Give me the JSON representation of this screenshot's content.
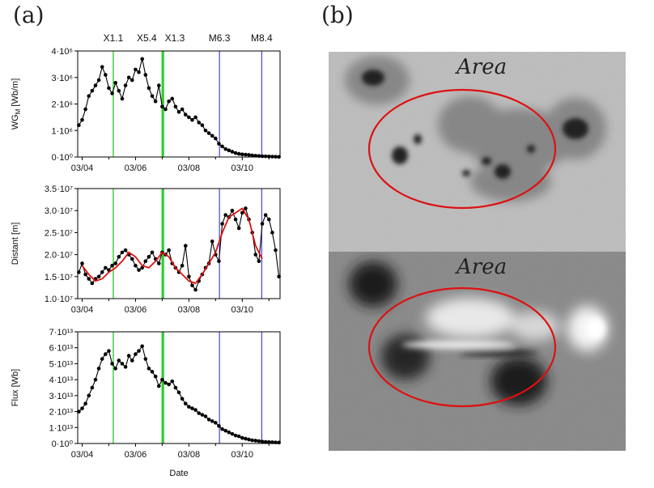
{
  "figure": {
    "panel_a_label": "(a)",
    "panel_b_label": "(b)"
  },
  "flares": [
    {
      "label": "X1.1",
      "date": "2012-03-05T04:00",
      "color": "#22cc22"
    },
    {
      "label": "X5.4",
      "date": "2012-03-07T00:00",
      "color": "#22cc22"
    },
    {
      "label": "X1.3",
      "date": "2012-03-07T01:10",
      "color": "#22cc22"
    },
    {
      "label": "M6.3",
      "date": "2012-03-09T03:30",
      "color": "#2222cc"
    },
    {
      "label": "M8.4",
      "date": "2012-03-10T17:30",
      "color": "#2222cc"
    }
  ],
  "images": {
    "top_label": "Area",
    "bottom_label": "Area",
    "ellipse_color": "#dd1111"
  },
  "chart_data": [
    {
      "type": "line",
      "ylabel": "WG_M [Wb/m]",
      "ylabel_base": "WG",
      "ylabel_sub": "M",
      "ylabel_unit": " [Wb/m]",
      "xlabel": "",
      "ylim": [
        0,
        4000000
      ],
      "yticks": [
        0,
        1000000,
        2000000,
        3000000,
        4000000
      ],
      "ytick_labels": [
        "0·10⁰",
        "1·10⁶",
        "2·10⁶",
        "3·10⁶",
        "4·10⁶"
      ],
      "xticks": [
        "03/04",
        "03/06",
        "03/08",
        "03/10"
      ],
      "xrange": [
        "2012-03-03T20:00",
        "2012-03-11T10:00"
      ],
      "series": [
        {
          "color": "#000000",
          "x": [
            "2012-03-03T21:00",
            "2012-03-04T00:00",
            "2012-03-04T03:00",
            "2012-03-04T06:00",
            "2012-03-04T09:00",
            "2012-03-04T12:00",
            "2012-03-04T15:00",
            "2012-03-04T18:00",
            "2012-03-04T21:00",
            "2012-03-05T00:00",
            "2012-03-05T03:00",
            "2012-03-05T06:00",
            "2012-03-05T09:00",
            "2012-03-05T12:00",
            "2012-03-05T15:00",
            "2012-03-05T18:00",
            "2012-03-05T21:00",
            "2012-03-06T00:00",
            "2012-03-06T03:00",
            "2012-03-06T06:00",
            "2012-03-06T09:00",
            "2012-03-06T12:00",
            "2012-03-06T15:00",
            "2012-03-06T18:00",
            "2012-03-06T21:00",
            "2012-03-07T00:00",
            "2012-03-07T03:00",
            "2012-03-07T06:00",
            "2012-03-07T09:00",
            "2012-03-07T12:00",
            "2012-03-07T15:00",
            "2012-03-07T18:00",
            "2012-03-07T21:00",
            "2012-03-08T00:00",
            "2012-03-08T03:00",
            "2012-03-08T06:00",
            "2012-03-08T09:00",
            "2012-03-08T12:00",
            "2012-03-08T15:00",
            "2012-03-08T18:00",
            "2012-03-08T21:00",
            "2012-03-09T00:00",
            "2012-03-09T03:00",
            "2012-03-09T06:00",
            "2012-03-09T09:00",
            "2012-03-09T12:00",
            "2012-03-09T15:00",
            "2012-03-09T18:00",
            "2012-03-09T21:00",
            "2012-03-10T00:00",
            "2012-03-10T03:00",
            "2012-03-10T06:00",
            "2012-03-10T09:00",
            "2012-03-10T12:00",
            "2012-03-10T15:00",
            "2012-03-10T18:00",
            "2012-03-10T21:00",
            "2012-03-11T00:00",
            "2012-03-11T03:00",
            "2012-03-11T06:00",
            "2012-03-11T09:00"
          ],
          "values": [
            1200000,
            1400000,
            1800000,
            2300000,
            2500000,
            2700000,
            2900000,
            3400000,
            3100000,
            2600000,
            2400000,
            2800000,
            2500000,
            2200000,
            2700000,
            3000000,
            2900000,
            3300000,
            3200000,
            3700000,
            3100000,
            2600000,
            2300000,
            2100000,
            2700000,
            1900000,
            1800000,
            2100000,
            2200000,
            1900000,
            1700000,
            1800000,
            1600000,
            1500000,
            1400000,
            1500000,
            1300000,
            1200000,
            1000000,
            900000,
            800000,
            700000,
            500000,
            400000,
            300000,
            250000,
            200000,
            150000,
            120000,
            100000,
            90000,
            80000,
            60000,
            50000,
            40000,
            30000,
            25000,
            20000,
            15000,
            10000,
            5000
          ]
        }
      ]
    },
    {
      "type": "line",
      "ylabel": "Distant [m]",
      "xlabel": "",
      "ylim": [
        10000000,
        35000000
      ],
      "yticks": [
        10000000,
        15000000,
        20000000,
        25000000,
        30000000,
        35000000
      ],
      "ytick_labels": [
        "1.0·10⁷",
        "1.5·10⁷",
        "2.0·10⁷",
        "2.5·10⁷",
        "3.0·10⁷",
        "3.5·10⁷"
      ],
      "xticks": [
        "03/04",
        "03/06",
        "03/08",
        "03/10"
      ],
      "xrange": [
        "2012-03-03T20:00",
        "2012-03-11T10:00"
      ],
      "series": [
        {
          "color": "#000000",
          "x": [
            "2012-03-03T21:00",
            "2012-03-04T00:00",
            "2012-03-04T03:00",
            "2012-03-04T06:00",
            "2012-03-04T09:00",
            "2012-03-04T12:00",
            "2012-03-04T15:00",
            "2012-03-04T18:00",
            "2012-03-04T21:00",
            "2012-03-05T00:00",
            "2012-03-05T03:00",
            "2012-03-05T06:00",
            "2012-03-05T09:00",
            "2012-03-05T12:00",
            "2012-03-05T15:00",
            "2012-03-05T18:00",
            "2012-03-05T21:00",
            "2012-03-06T00:00",
            "2012-03-06T03:00",
            "2012-03-06T06:00",
            "2012-03-06T09:00",
            "2012-03-06T12:00",
            "2012-03-06T15:00",
            "2012-03-06T18:00",
            "2012-03-06T21:00",
            "2012-03-07T00:00",
            "2012-03-07T03:00",
            "2012-03-07T06:00",
            "2012-03-07T09:00",
            "2012-03-07T12:00",
            "2012-03-07T15:00",
            "2012-03-07T18:00",
            "2012-03-07T21:00",
            "2012-03-08T00:00",
            "2012-03-08T03:00",
            "2012-03-08T06:00",
            "2012-03-08T09:00",
            "2012-03-08T12:00",
            "2012-03-08T15:00",
            "2012-03-08T18:00",
            "2012-03-08T21:00",
            "2012-03-09T00:00",
            "2012-03-09T03:00",
            "2012-03-09T06:00",
            "2012-03-09T09:00",
            "2012-03-09T12:00",
            "2012-03-09T15:00",
            "2012-03-09T18:00",
            "2012-03-09T21:00",
            "2012-03-10T00:00",
            "2012-03-10T03:00",
            "2012-03-10T06:00",
            "2012-03-10T09:00",
            "2012-03-10T12:00",
            "2012-03-10T15:00",
            "2012-03-10T18:00",
            "2012-03-10T21:00",
            "2012-03-11T00:00",
            "2012-03-11T03:00",
            "2012-03-11T06:00",
            "2012-03-11T09:00"
          ],
          "values": [
            16000000,
            18000000,
            15500000,
            14500000,
            13500000,
            14500000,
            15000000,
            16000000,
            17000000,
            16500000,
            17500000,
            18000000,
            19500000,
            20500000,
            21000000,
            20000000,
            19000000,
            17500000,
            16500000,
            17000000,
            18500000,
            19500000,
            20500000,
            19000000,
            18000000,
            20500000,
            20000000,
            21000000,
            18000000,
            17000000,
            16000000,
            17500000,
            22000000,
            15000000,
            13000000,
            12000000,
            14000000,
            15500000,
            17000000,
            18000000,
            23000000,
            20000000,
            18500000,
            27000000,
            29000000,
            28500000,
            30000000,
            28000000,
            26000000,
            29500000,
            30500000,
            28000000,
            25000000,
            20000000,
            18500000,
            27000000,
            29000000,
            28000000,
            25000000,
            21000000,
            15000000
          ]
        },
        {
          "color": "#dd1111",
          "x": [
            "2012-03-04T00:00",
            "2012-03-04T06:00",
            "2012-03-04T12:00",
            "2012-03-04T18:00",
            "2012-03-05T00:00",
            "2012-03-05T06:00",
            "2012-03-05T12:00",
            "2012-03-05T18:00",
            "2012-03-06T00:00",
            "2012-03-06T06:00",
            "2012-03-06T12:00",
            "2012-03-06T18:00",
            "2012-03-07T00:00",
            "2012-03-07T06:00",
            "2012-03-07T12:00",
            "2012-03-07T18:00",
            "2012-03-08T00:00",
            "2012-03-08T06:00",
            "2012-03-08T12:00",
            "2012-03-08T18:00",
            "2012-03-09T00:00",
            "2012-03-09T06:00",
            "2012-03-09T12:00",
            "2012-03-09T18:00",
            "2012-03-10T00:00",
            "2012-03-10T06:00",
            "2012-03-10T12:00",
            "2012-03-10T18:00"
          ],
          "values": [
            17500000,
            15500000,
            14000000,
            14500000,
            16000000,
            17000000,
            18500000,
            20500000,
            19500000,
            17500000,
            17000000,
            18500000,
            20500000,
            19500000,
            17000000,
            15500000,
            14000000,
            13500000,
            15500000,
            18000000,
            20500000,
            25000000,
            28500000,
            29500000,
            30500000,
            28000000,
            22000000,
            19000000
          ]
        }
      ]
    },
    {
      "type": "line",
      "ylabel": "Flux [Wb]",
      "xlabel": "Date",
      "ylim": [
        0,
        70000000000000
      ],
      "yticks": [
        0,
        10000000000000,
        20000000000000,
        30000000000000,
        40000000000000,
        50000000000000,
        60000000000000,
        70000000000000
      ],
      "ytick_labels": [
        "0·10⁰",
        "1·10¹³",
        "2·10¹³",
        "3·10¹³",
        "4·10¹³",
        "5·10¹³",
        "6·10¹³",
        "7·10¹³"
      ],
      "xticks": [
        "03/04",
        "03/06",
        "03/08",
        "03/10"
      ],
      "xrange": [
        "2012-03-03T20:00",
        "2012-03-11T10:00"
      ],
      "series": [
        {
          "color": "#000000",
          "x": [
            "2012-03-03T21:00",
            "2012-03-04T00:00",
            "2012-03-04T03:00",
            "2012-03-04T06:00",
            "2012-03-04T09:00",
            "2012-03-04T12:00",
            "2012-03-04T15:00",
            "2012-03-04T18:00",
            "2012-03-04T21:00",
            "2012-03-05T00:00",
            "2012-03-05T03:00",
            "2012-03-05T06:00",
            "2012-03-05T09:00",
            "2012-03-05T12:00",
            "2012-03-05T15:00",
            "2012-03-05T18:00",
            "2012-03-05T21:00",
            "2012-03-06T00:00",
            "2012-03-06T03:00",
            "2012-03-06T06:00",
            "2012-03-06T09:00",
            "2012-03-06T12:00",
            "2012-03-06T15:00",
            "2012-03-06T18:00",
            "2012-03-06T21:00",
            "2012-03-07T00:00",
            "2012-03-07T03:00",
            "2012-03-07T06:00",
            "2012-03-07T09:00",
            "2012-03-07T12:00",
            "2012-03-07T15:00",
            "2012-03-07T18:00",
            "2012-03-07T21:00",
            "2012-03-08T00:00",
            "2012-03-08T03:00",
            "2012-03-08T06:00",
            "2012-03-08T09:00",
            "2012-03-08T12:00",
            "2012-03-08T15:00",
            "2012-03-08T18:00",
            "2012-03-08T21:00",
            "2012-03-09T00:00",
            "2012-03-09T03:00",
            "2012-03-09T06:00",
            "2012-03-09T09:00",
            "2012-03-09T12:00",
            "2012-03-09T15:00",
            "2012-03-09T18:00",
            "2012-03-09T21:00",
            "2012-03-10T00:00",
            "2012-03-10T03:00",
            "2012-03-10T06:00",
            "2012-03-10T09:00",
            "2012-03-10T12:00",
            "2012-03-10T15:00",
            "2012-03-10T18:00",
            "2012-03-10T21:00",
            "2012-03-11T00:00",
            "2012-03-11T03:00",
            "2012-03-11T06:00",
            "2012-03-11T09:00"
          ],
          "values": [
            20000000000000,
            22000000000000,
            25000000000000,
            30000000000000,
            35000000000000,
            40000000000000,
            47000000000000,
            53000000000000,
            56000000000000,
            58000000000000,
            50000000000000,
            47000000000000,
            52000000000000,
            50000000000000,
            48000000000000,
            55000000000000,
            52000000000000,
            56000000000000,
            58000000000000,
            61000000000000,
            53000000000000,
            47000000000000,
            45000000000000,
            42000000000000,
            36000000000000,
            40000000000000,
            38000000000000,
            37000000000000,
            39000000000000,
            35000000000000,
            32000000000000,
            28000000000000,
            25000000000000,
            23000000000000,
            22000000000000,
            21000000000000,
            19000000000000,
            18000000000000,
            17000000000000,
            15000000000000,
            14000000000000,
            13000000000000,
            11000000000000,
            9000000000000,
            8000000000000,
            7000000000000,
            6000000000000,
            5000000000000,
            4500000000000,
            3500000000000,
            3000000000000,
            2500000000000,
            2000000000000,
            1800000000000,
            1500000000000,
            1200000000000,
            1000000000000,
            900000000000,
            800000000000,
            700000000000,
            600000000000
          ]
        }
      ]
    }
  ]
}
